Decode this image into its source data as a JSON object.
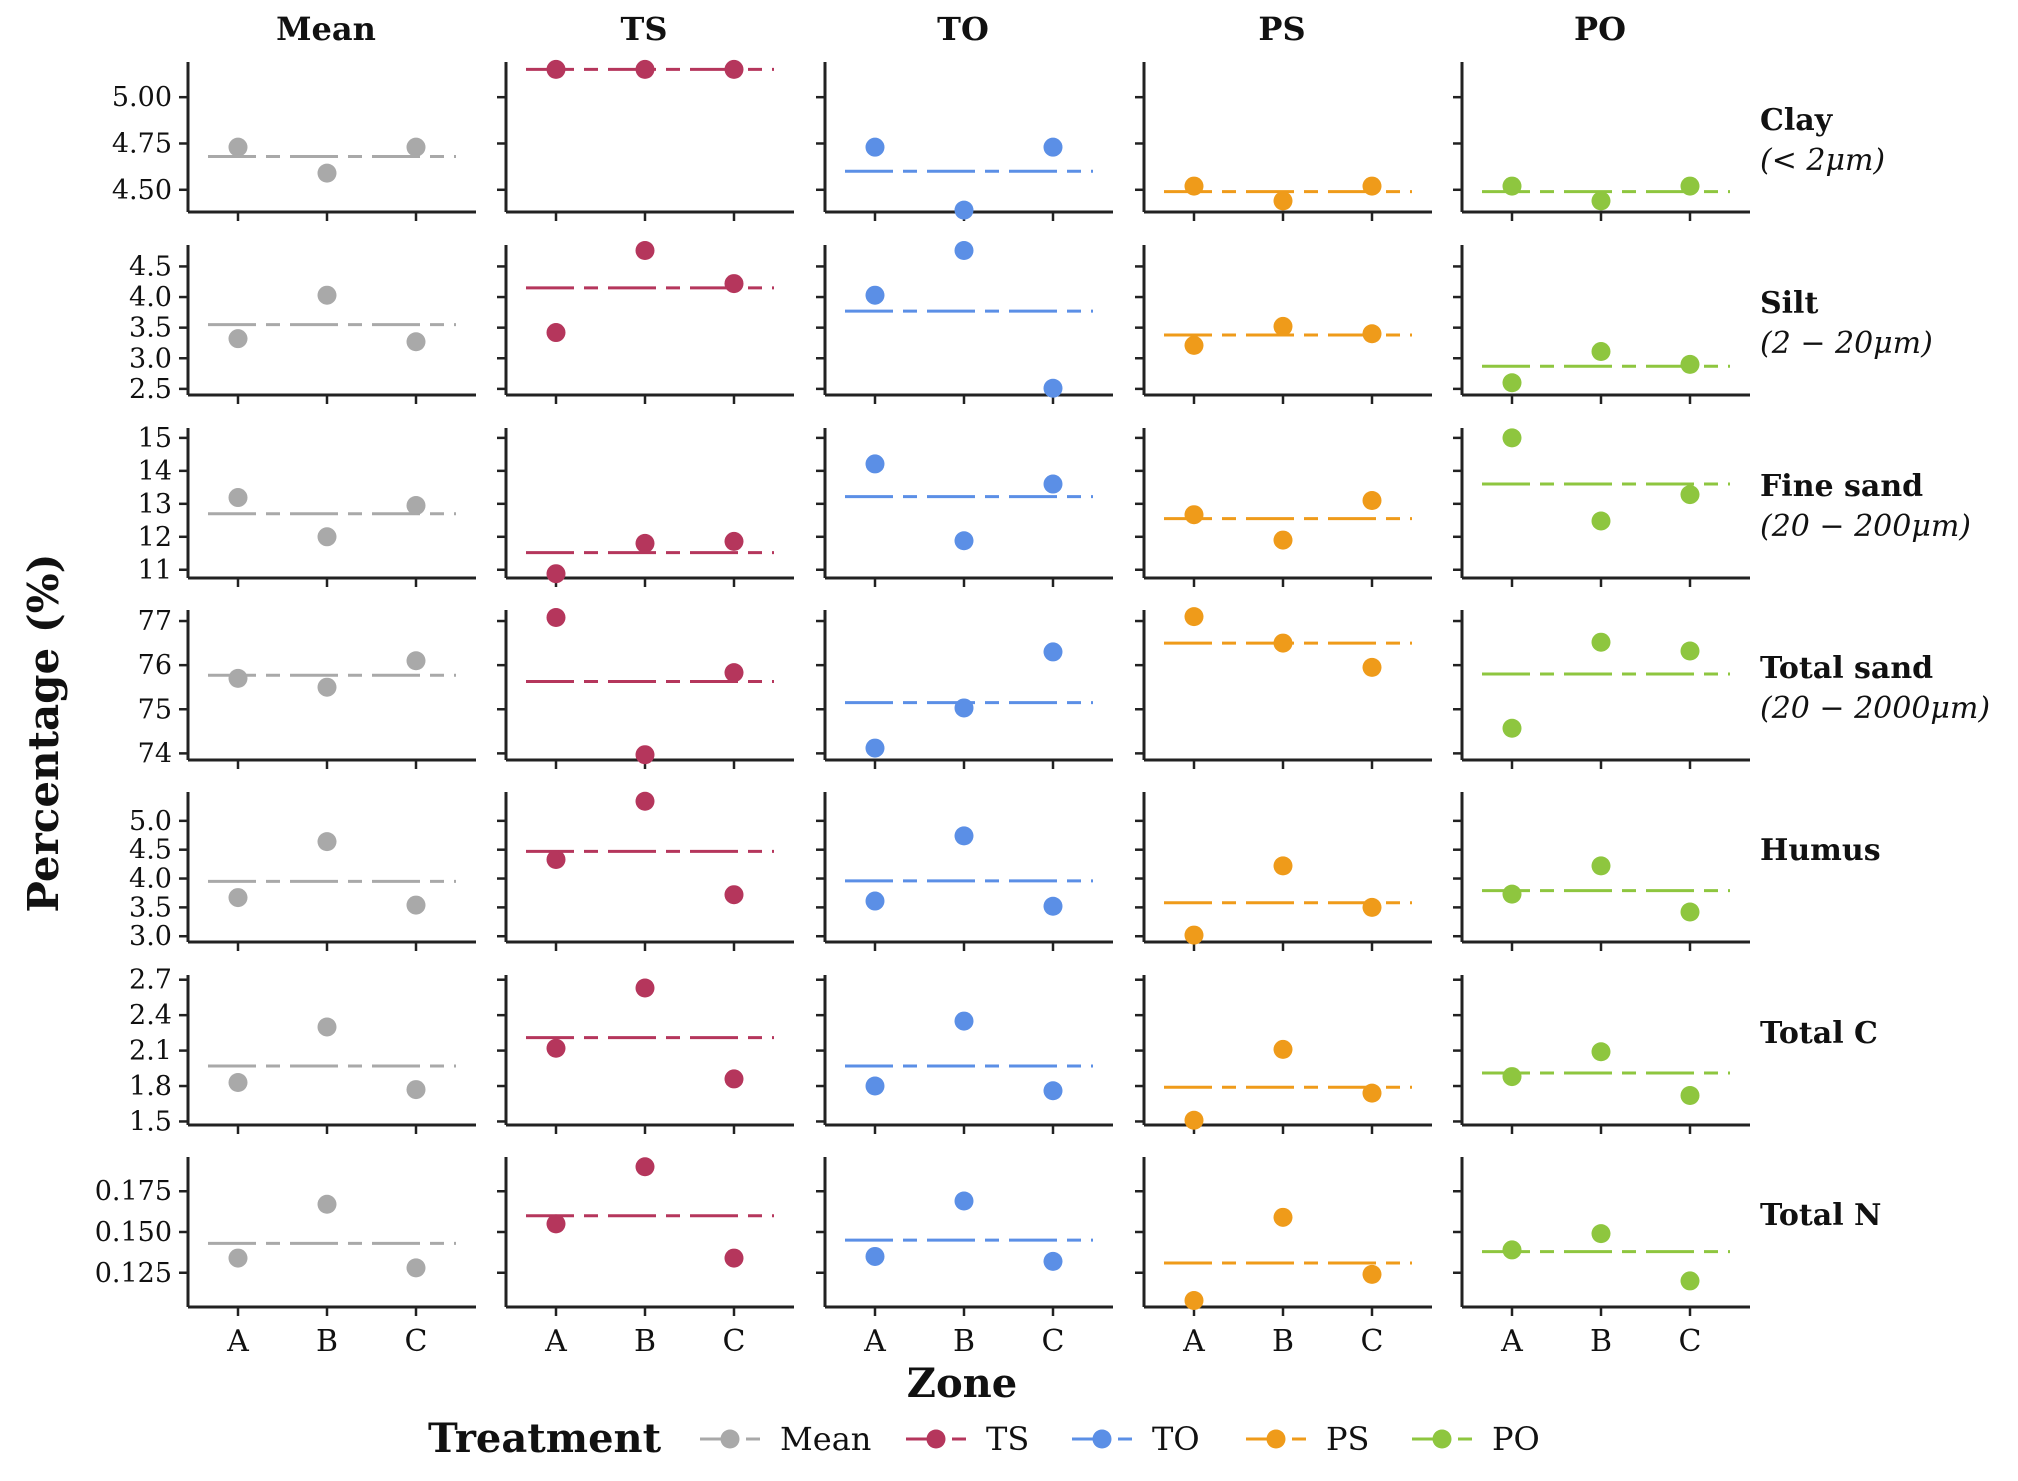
{
  "chart_data": {
    "type": "scatter",
    "xlabel": "Zone",
    "ylabel": "Percentage (%)",
    "categories": [
      "A",
      "B",
      "C"
    ],
    "legend": {
      "title": "Treatment",
      "position": "bottom",
      "items": [
        {
          "name": "Mean",
          "color": "#a9a9a9"
        },
        {
          "name": "TS",
          "color": "#b5365c"
        },
        {
          "name": "TO",
          "color": "#5b8fe6"
        },
        {
          "name": "PS",
          "color": "#ef9b1a"
        },
        {
          "name": "PO",
          "color": "#8ec63f"
        }
      ]
    },
    "columns": [
      "Mean",
      "TS",
      "TO",
      "PS",
      "PO"
    ],
    "rows": [
      {
        "label_line1": "Clay",
        "label_line2": "(< 2μm)",
        "ylim": [
          4.38,
          5.19
        ],
        "ticks": [
          4.5,
          4.75,
          5.0
        ],
        "tick_labels": [
          "4.50",
          "4.75",
          "5.00"
        ],
        "panels": [
          {
            "treatment": "Mean",
            "values": [
              4.73,
              4.59,
              4.73
            ],
            "ref": 4.68
          },
          {
            "treatment": "TS",
            "values": [
              5.15,
              5.15,
              5.15
            ],
            "ref": 5.15
          },
          {
            "treatment": "TO",
            "values": [
              4.73,
              4.39,
              4.73
            ],
            "ref": 4.6
          },
          {
            "treatment": "PS",
            "values": [
              4.52,
              4.44,
              4.52
            ],
            "ref": 4.49
          },
          {
            "treatment": "PO",
            "values": [
              4.52,
              4.44,
              4.52
            ],
            "ref": 4.49
          }
        ]
      },
      {
        "label_line1": "Silt",
        "label_line2": "(2 − 20μm)",
        "ylim": [
          2.4,
          4.85
        ],
        "ticks": [
          2.5,
          3.0,
          3.5,
          4.0,
          4.5
        ],
        "tick_labels": [
          "2.5",
          "3.0",
          "3.5",
          "4.0",
          "4.5"
        ],
        "panels": [
          {
            "treatment": "Mean",
            "values": [
              3.32,
              4.03,
              3.27
            ],
            "ref": 3.55
          },
          {
            "treatment": "TS",
            "values": [
              3.42,
              4.76,
              4.22
            ],
            "ref": 4.15
          },
          {
            "treatment": "TO",
            "values": [
              4.03,
              4.76,
              2.51
            ],
            "ref": 3.77
          },
          {
            "treatment": "PS",
            "values": [
              3.21,
              3.52,
              3.4
            ],
            "ref": 3.38
          },
          {
            "treatment": "PO",
            "values": [
              2.6,
              3.11,
              2.9
            ],
            "ref": 2.87
          }
        ]
      },
      {
        "label_line1": "Fine sand",
        "label_line2": "(20 − 200μm)",
        "ylim": [
          10.75,
          15.3
        ],
        "ticks": [
          11,
          12,
          13,
          14,
          15
        ],
        "tick_labels": [
          "11",
          "12",
          "13",
          "14",
          "15"
        ],
        "panels": [
          {
            "treatment": "Mean",
            "values": [
              13.19,
              12.0,
              12.95
            ],
            "ref": 12.7
          },
          {
            "treatment": "TS",
            "values": [
              10.88,
              11.8,
              11.86
            ],
            "ref": 11.52
          },
          {
            "treatment": "TO",
            "values": [
              14.21,
              11.88,
              13.6
            ],
            "ref": 13.22
          },
          {
            "treatment": "PS",
            "values": [
              12.67,
              11.9,
              13.1
            ],
            "ref": 12.55
          },
          {
            "treatment": "PO",
            "values": [
              15.0,
              12.48,
              13.28
            ],
            "ref": 13.6
          }
        ]
      },
      {
        "label_line1": "Total sand",
        "label_line2": "(20 − 2000μm)",
        "ylim": [
          73.85,
          77.25
        ],
        "ticks": [
          74,
          75,
          76,
          77
        ],
        "tick_labels": [
          "74",
          "75",
          "76",
          "77"
        ],
        "panels": [
          {
            "treatment": "Mean",
            "values": [
              75.7,
              75.5,
              76.1
            ],
            "ref": 75.77
          },
          {
            "treatment": "TS",
            "values": [
              77.08,
              73.97,
              75.83
            ],
            "ref": 75.63
          },
          {
            "treatment": "TO",
            "values": [
              74.12,
              75.03,
              76.3
            ],
            "ref": 75.15
          },
          {
            "treatment": "PS",
            "values": [
              77.1,
              76.5,
              75.95
            ],
            "ref": 76.5
          },
          {
            "treatment": "PO",
            "values": [
              74.57,
              76.52,
              76.32
            ],
            "ref": 75.8
          }
        ]
      },
      {
        "label_line1": "Humus",
        "label_line2": "",
        "ylim": [
          2.9,
          5.5
        ],
        "ticks": [
          3.0,
          3.5,
          4.0,
          4.5,
          5.0
        ],
        "tick_labels": [
          "3.0",
          "3.5",
          "4.0",
          "4.5",
          "5.0"
        ],
        "panels": [
          {
            "treatment": "Mean",
            "values": [
              3.67,
              4.64,
              3.54
            ],
            "ref": 3.95
          },
          {
            "treatment": "TS",
            "values": [
              4.33,
              5.34,
              3.72
            ],
            "ref": 4.47
          },
          {
            "treatment": "TO",
            "values": [
              3.61,
              4.74,
              3.52
            ],
            "ref": 3.96
          },
          {
            "treatment": "PS",
            "values": [
              3.02,
              4.22,
              3.5
            ],
            "ref": 3.58
          },
          {
            "treatment": "PO",
            "values": [
              3.73,
              4.22,
              3.42
            ],
            "ref": 3.79
          }
        ]
      },
      {
        "label_line1": "Total C",
        "label_line2": "",
        "ylim": [
          1.47,
          2.74
        ],
        "ticks": [
          1.5,
          1.8,
          2.1,
          2.4,
          2.7
        ],
        "tick_labels": [
          "1.5",
          "1.8",
          "2.1",
          "2.4",
          "2.7"
        ],
        "panels": [
          {
            "treatment": "Mean",
            "values": [
              1.83,
              2.3,
              1.77
            ],
            "ref": 1.97
          },
          {
            "treatment": "TS",
            "values": [
              2.12,
              2.63,
              1.86
            ],
            "ref": 2.21
          },
          {
            "treatment": "TO",
            "values": [
              1.8,
              2.35,
              1.76
            ],
            "ref": 1.97
          },
          {
            "treatment": "PS",
            "values": [
              1.51,
              2.11,
              1.74
            ],
            "ref": 1.79
          },
          {
            "treatment": "PO",
            "values": [
              1.88,
              2.09,
              1.72
            ],
            "ref": 1.91
          }
        ]
      },
      {
        "label_line1": "Total N",
        "label_line2": "",
        "ylim": [
          0.104,
          0.196
        ],
        "ticks": [
          0.125,
          0.15,
          0.175
        ],
        "tick_labels": [
          "0.125",
          "0.150",
          "0.175"
        ],
        "panels": [
          {
            "treatment": "Mean",
            "values": [
              0.134,
              0.167,
              0.128
            ],
            "ref": 0.143
          },
          {
            "treatment": "TS",
            "values": [
              0.155,
              0.19,
              0.134
            ],
            "ref": 0.16
          },
          {
            "treatment": "TO",
            "values": [
              0.135,
              0.169,
              0.132
            ],
            "ref": 0.145
          },
          {
            "treatment": "PS",
            "values": [
              0.108,
              0.159,
              0.124
            ],
            "ref": 0.131
          },
          {
            "treatment": "PO",
            "values": [
              0.139,
              0.149,
              0.12
            ],
            "ref": 0.138
          }
        ]
      }
    ]
  }
}
